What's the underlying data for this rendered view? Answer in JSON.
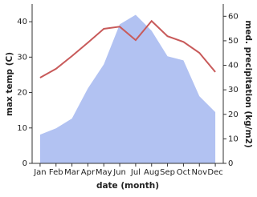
{
  "chart_data": {
    "type": "line-area",
    "x_label": "date (month)",
    "y_label": "max temp (C)",
    "y2_label": "med. precipitation (kg/m2)",
    "categories": [
      "Jan",
      "Feb",
      "Mar",
      "Apr",
      "May",
      "Jun",
      "Jul",
      "Aug",
      "Sep",
      "Oct",
      "Nov",
      "Dec"
    ],
    "series": [
      {
        "name": "max temp",
        "color": "#c85a5a",
        "kind": "line",
        "values": [
          24.2,
          26.7,
          30.3,
          34.1,
          38,
          38.6,
          34.8,
          40.2,
          35.9,
          34.3,
          31.2,
          25.8
        ]
      },
      {
        "name": "med. precipitation",
        "color": "#b2c2f2",
        "kind": "area",
        "axis": "y2",
        "values": [
          11.7,
          14.3,
          18.3,
          30.6,
          40.4,
          56.7,
          60.6,
          54.1,
          43.7,
          42,
          27.4,
          20.9
        ]
      }
    ],
    "ylim": [
      0,
      45
    ],
    "yticks": [
      0,
      10,
      20,
      30,
      40
    ],
    "y2lim": [
      0,
      65
    ],
    "y2ticks": [
      0,
      10,
      20,
      30,
      40,
      50,
      60
    ]
  }
}
